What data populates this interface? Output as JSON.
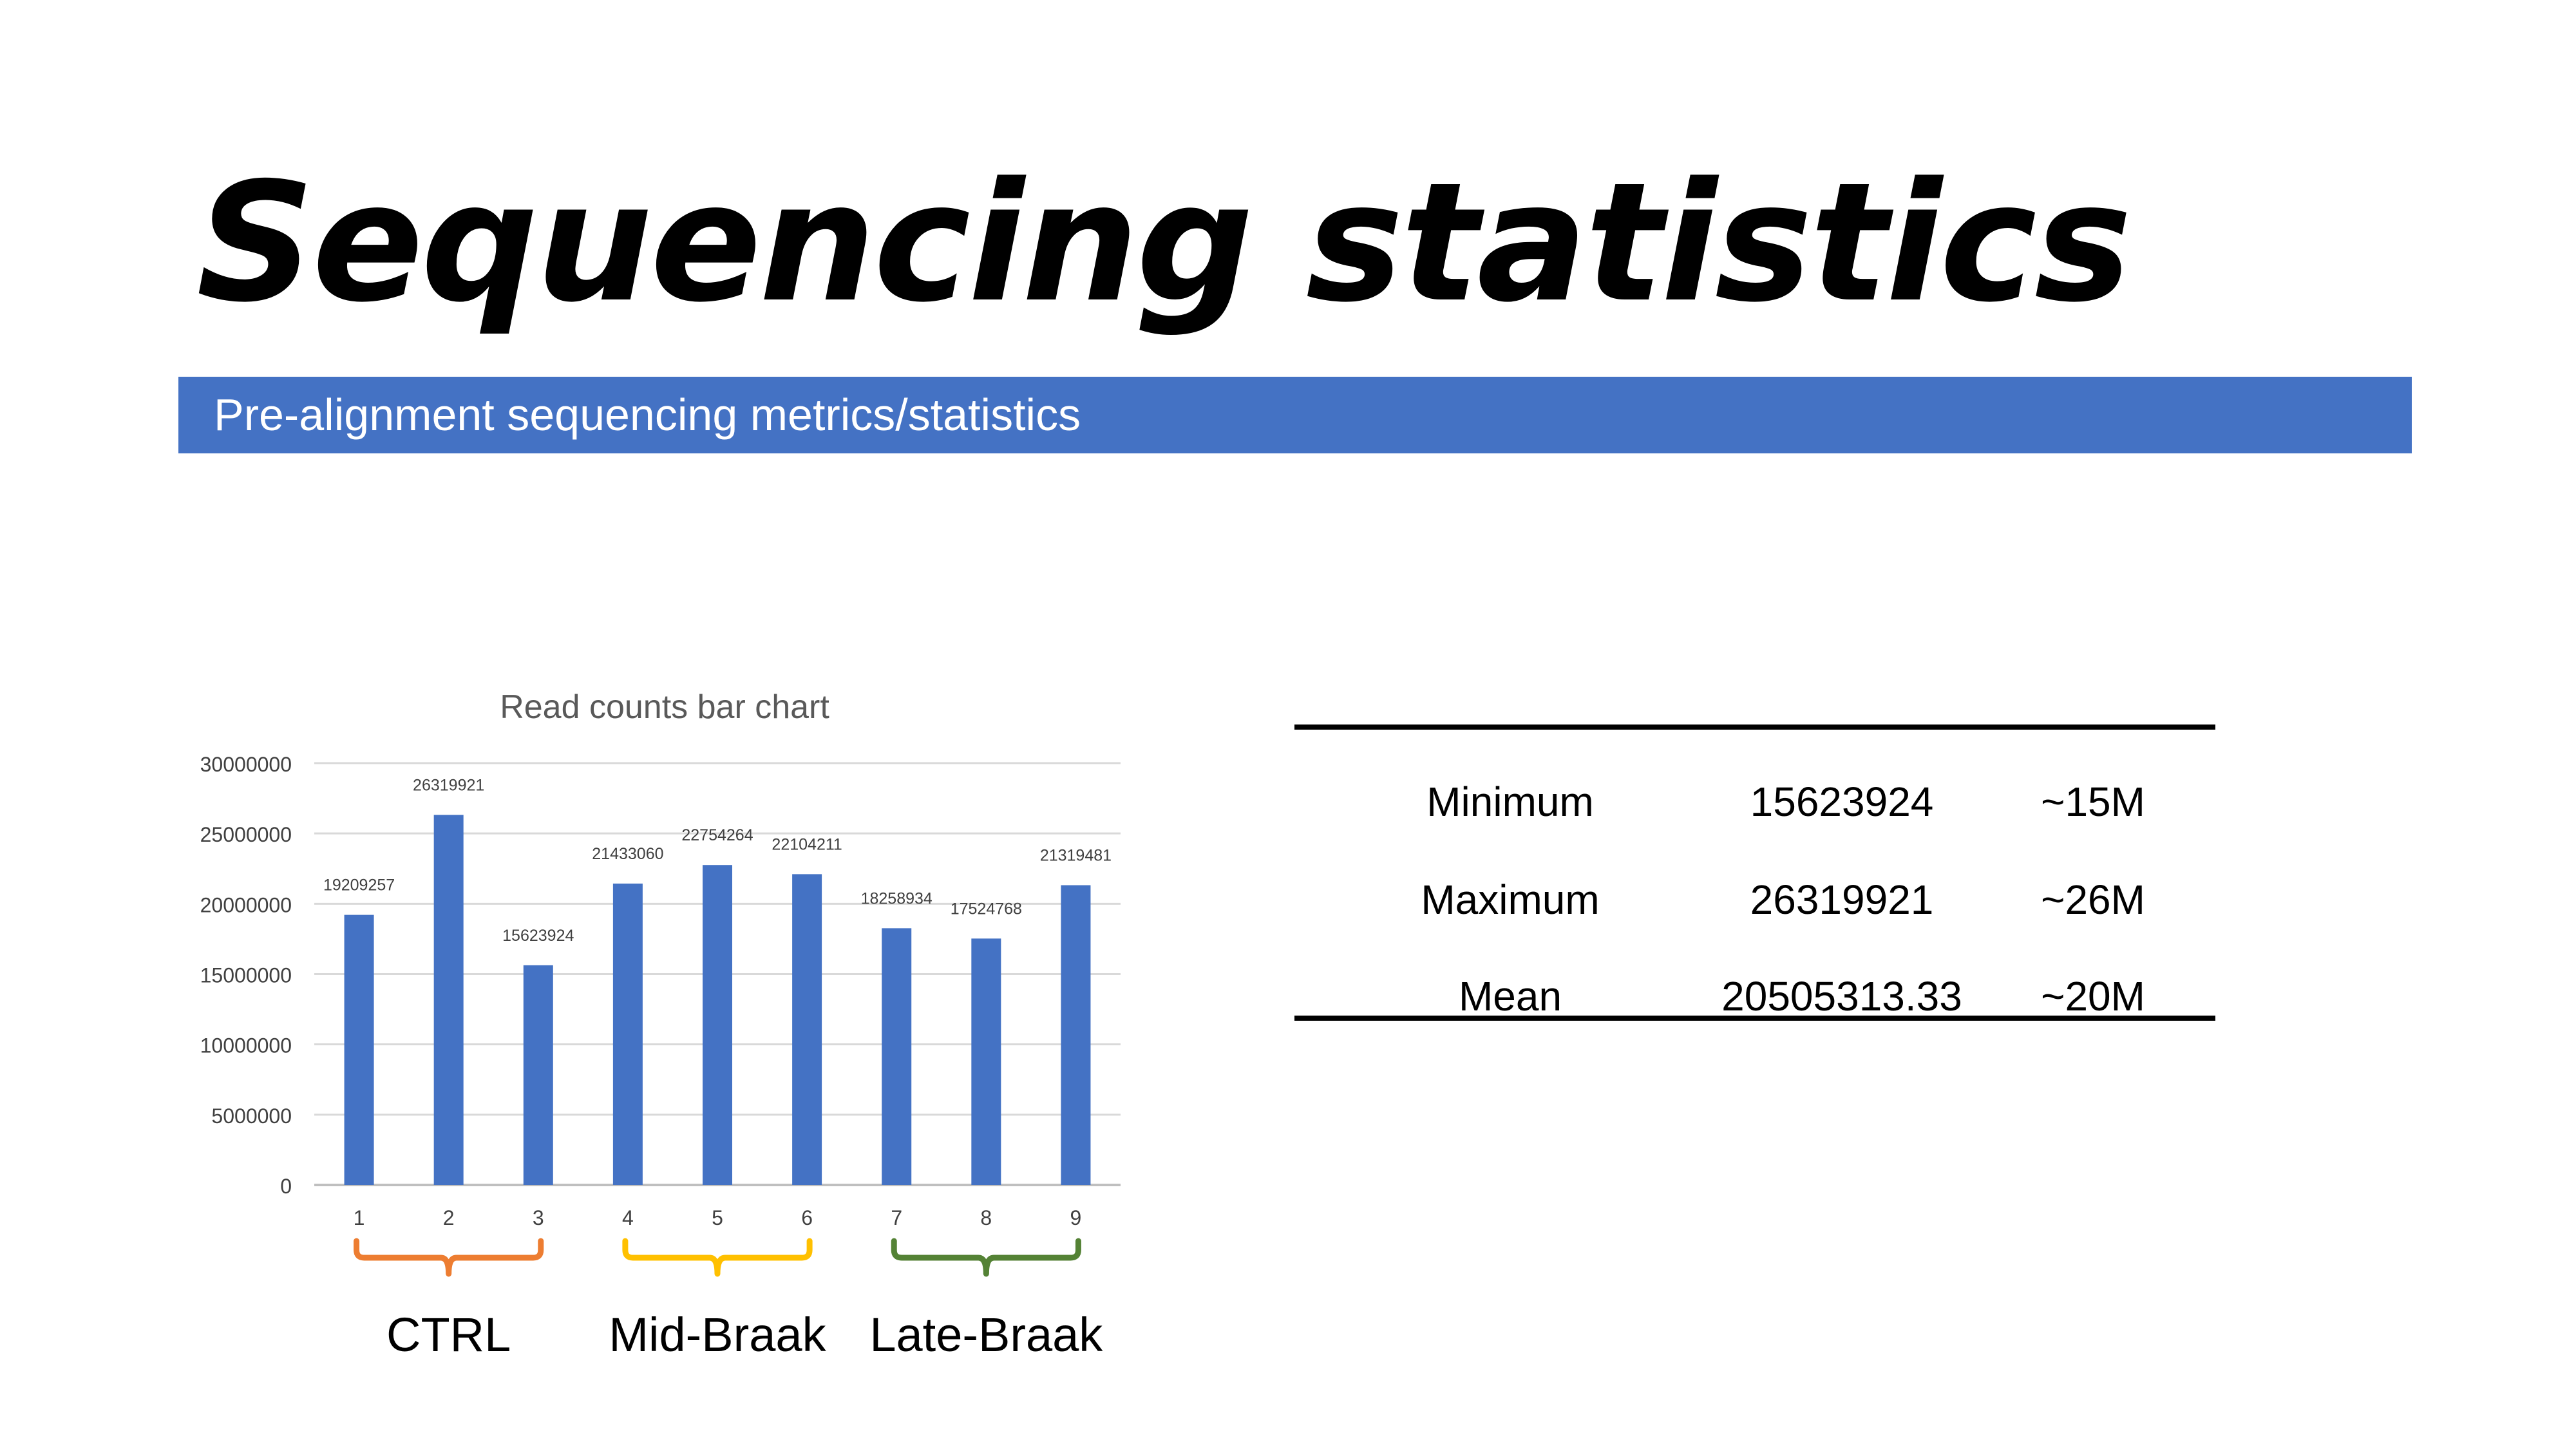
{
  "slide": {
    "title": "Sequencing statistics",
    "subtitle": "Pre-alignment sequencing metrics/statistics",
    "accent_color": "#4472C4"
  },
  "chart_data": {
    "type": "bar",
    "title": "Read counts bar chart",
    "categories": [
      "1",
      "2",
      "3",
      "4",
      "5",
      "6",
      "7",
      "8",
      "9"
    ],
    "series": [
      {
        "values": [
          19209257,
          26319921,
          15623924,
          21433060,
          22754264,
          22104211,
          18258934,
          17524768,
          21319481
        ]
      }
    ],
    "data_labels": [
      "19209257",
      "26319921",
      "15623924",
      "21433060",
      "22754264",
      "22104211",
      "18258934",
      "17524768",
      "21319481"
    ],
    "ylim": [
      0,
      30000000
    ],
    "yticks": [
      "0",
      "5000000",
      "10000000",
      "15000000",
      "20000000",
      "25000000",
      "30000000"
    ],
    "grid": true,
    "bar_color": "#4472C4",
    "groups": [
      {
        "label": "CTRL",
        "categories": [
          "1",
          "3"
        ],
        "color": "#ED7D31"
      },
      {
        "label": "Mid-Braak",
        "categories": [
          "4",
          "6"
        ],
        "color": "#FFC000"
      },
      {
        "label": "Late-Braak",
        "categories": [
          "7",
          "9"
        ],
        "color": "#548235"
      }
    ]
  },
  "stats_table": {
    "rows": [
      {
        "label": "Minimum",
        "value": "15623924",
        "approx": "~15M"
      },
      {
        "label": "Maximum",
        "value": "26319921",
        "approx": "~26M"
      },
      {
        "label": "Mean",
        "value": "20505313.33",
        "approx": "~20M"
      }
    ]
  }
}
